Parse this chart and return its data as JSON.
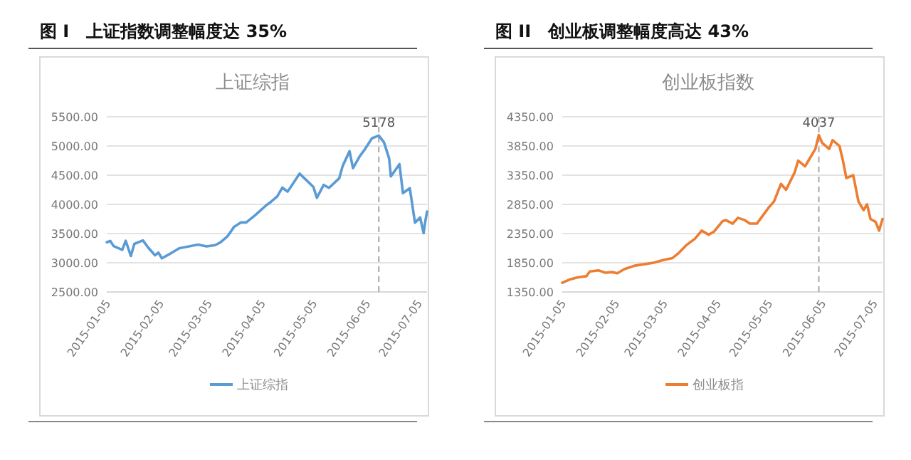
{
  "chart_data": [
    {
      "type": "line",
      "title": "图 I　上证指数调整幅度达 35%",
      "subtitle": "上证综指",
      "x": [
        "2015-01-05",
        "2015-01-07",
        "2015-01-09",
        "2015-01-14",
        "2015-01-16",
        "2015-01-19",
        "2015-01-21",
        "2015-01-26",
        "2015-01-29",
        "2015-02-02",
        "2015-02-04",
        "2015-02-06",
        "2015-02-10",
        "2015-02-16",
        "2015-02-27",
        "2015-03-04",
        "2015-03-09",
        "2015-03-12",
        "2015-03-16",
        "2015-03-20",
        "2015-03-24",
        "2015-03-27",
        "2015-04-01",
        "2015-04-08",
        "2015-04-10",
        "2015-04-14",
        "2015-04-17",
        "2015-04-20",
        "2015-04-24",
        "2015-04-27",
        "2015-04-30",
        "2015-05-05",
        "2015-05-07",
        "2015-05-11",
        "2015-05-14",
        "2015-05-15",
        "2015-05-20",
        "2015-05-22",
        "2015-05-26",
        "2015-05-28",
        "2015-06-01",
        "2015-06-04",
        "2015-06-08",
        "2015-06-12",
        "2015-06-15",
        "2015-06-18",
        "2015-06-19",
        "2015-06-24",
        "2015-06-26",
        "2015-06-30",
        "2015-07-03",
        "2015-07-06",
        "2015-07-08",
        "2015-07-09",
        "2015-07-10"
      ],
      "series": [
        {
          "name": "上证综指",
          "color": "#5b9bd5",
          "values": [
            3351,
            3374,
            3285,
            3222,
            3376,
            3116,
            3323,
            3383,
            3262,
            3128,
            3174,
            3076,
            3141,
            3247,
            3310,
            3280,
            3302,
            3349,
            3449,
            3617,
            3691,
            3691,
            3810,
            3994,
            4034,
            4135,
            4287,
            4217,
            4393,
            4527,
            4441,
            4298,
            4112,
            4333,
            4283,
            4308,
            4446,
            4657,
            4910,
            4620,
            4828,
            4947,
            5131,
            5178,
            5062,
            4785,
            4478,
            4690,
            4192,
            4277,
            3687,
            3776,
            3507,
            3709,
            3877
          ]
        }
      ],
      "xlim": [
        "2015-01-05",
        "2015-07-10"
      ],
      "xticks": [
        "2015-01-05",
        "2015-02-05",
        "2015-03-05",
        "2015-04-05",
        "2015-05-05",
        "2015-06-05",
        "2015-07-05"
      ],
      "ylim": [
        2500,
        5500
      ],
      "yticks": [
        {
          "value": 2500,
          "label": "2500.00"
        },
        {
          "value": 3000,
          "label": "3000.00"
        },
        {
          "value": 3500,
          "label": "3500.00"
        },
        {
          "value": 4000,
          "label": "4000.00"
        },
        {
          "value": 4500,
          "label": "4500.00"
        },
        {
          "value": 5000,
          "label": "5000.00"
        },
        {
          "value": 5500,
          "label": "5500.00"
        }
      ],
      "grid": "y",
      "legend": "bottom",
      "marker": "none",
      "ref_lines": [
        {
          "axis": "x",
          "value": "2015-06-12",
          "line_style": "dashed",
          "color": "#a6a6a6"
        }
      ],
      "annotations": [
        {
          "text": "5178",
          "x": "2015-06-12",
          "y": 5178
        }
      ]
    },
    {
      "type": "line",
      "title": "图 II　创业板调整幅度高达 43%",
      "subtitle": "创业板指数",
      "x": [
        "2015-01-05",
        "2015-01-09",
        "2015-01-14",
        "2015-01-19",
        "2015-01-21",
        "2015-01-26",
        "2015-01-30",
        "2015-02-03",
        "2015-02-06",
        "2015-02-10",
        "2015-02-16",
        "2015-02-27",
        "2015-03-05",
        "2015-03-10",
        "2015-03-13",
        "2015-03-18",
        "2015-03-23",
        "2015-03-27",
        "2015-03-31",
        "2015-04-03",
        "2015-04-08",
        "2015-04-10",
        "2015-04-14",
        "2015-04-17",
        "2015-04-21",
        "2015-04-24",
        "2015-04-28",
        "2015-05-05",
        "2015-05-08",
        "2015-05-12",
        "2015-05-15",
        "2015-05-20",
        "2015-05-22",
        "2015-05-26",
        "2015-05-28",
        "2015-06-01",
        "2015-06-03",
        "2015-06-05",
        "2015-06-09",
        "2015-06-11",
        "2015-06-15",
        "2015-06-17",
        "2015-06-19",
        "2015-06-23",
        "2015-06-26",
        "2015-06-29",
        "2015-07-01",
        "2015-07-03",
        "2015-07-06",
        "2015-07-08",
        "2015-07-09",
        "2015-07-10"
      ],
      "series": [
        {
          "name": "创业板指",
          "color": "#ed7d31",
          "values": [
            1506,
            1560,
            1600,
            1620,
            1700,
            1720,
            1680,
            1690,
            1670,
            1740,
            1800,
            1850,
            1900,
            1930,
            2000,
            2150,
            2260,
            2400,
            2330,
            2380,
            2560,
            2580,
            2520,
            2620,
            2580,
            2520,
            2520,
            2800,
            2900,
            3200,
            3100,
            3400,
            3600,
            3500,
            3600,
            3800,
            4037,
            3900,
            3800,
            3950,
            3850,
            3600,
            3300,
            3350,
            2900,
            2750,
            2850,
            2600,
            2550,
            2400,
            2500,
            2600
          ]
        }
      ],
      "xlim": [
        "2015-01-05",
        "2015-07-10"
      ],
      "xticks": [
        "2015-01-05",
        "2015-02-05",
        "2015-03-05",
        "2015-04-05",
        "2015-05-05",
        "2015-06-05",
        "2015-07-05"
      ],
      "ylim": [
        1350,
        4350
      ],
      "yticks": [
        {
          "value": 1350,
          "label": "1350.00"
        },
        {
          "value": 1850,
          "label": "1850.00"
        },
        {
          "value": 2350,
          "label": "2350.00"
        },
        {
          "value": 2850,
          "label": "2850.00"
        },
        {
          "value": 3350,
          "label": "3350.00"
        },
        {
          "value": 3850,
          "label": "3850.00"
        },
        {
          "value": 4350,
          "label": "4350.00"
        }
      ],
      "grid": "y",
      "legend": "bottom",
      "marker": "none",
      "ref_lines": [
        {
          "axis": "x",
          "value": "2015-06-03",
          "line_style": "dashed",
          "color": "#a6a6a6"
        }
      ],
      "annotations": [
        {
          "text": "4037",
          "x": "2015-06-03",
          "y": 4037
        }
      ]
    }
  ]
}
